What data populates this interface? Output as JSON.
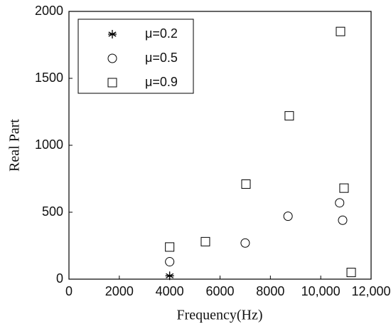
{
  "chart_data": {
    "type": "scatter",
    "x_label": "Frequency(Hz)",
    "y_label": "Real Part",
    "xlim": [
      0,
      12000
    ],
    "ylim": [
      0,
      2000
    ],
    "xticks": [
      0,
      2000,
      4000,
      6000,
      8000,
      {
        "value": 10000,
        "label": "10,000"
      },
      {
        "value": 12000,
        "label": "12,000"
      }
    ],
    "yticks": [
      0,
      500,
      1000,
      1500,
      2000
    ],
    "legend": "upper left",
    "series": [
      {
        "name": "μ=0.2",
        "color": "#000000",
        "marker": "star",
        "x": [
          4000
        ],
        "values": [
          25
        ]
      },
      {
        "name": "μ=0.5",
        "color": "#000000",
        "marker": "circle",
        "x": [
          4000,
          7000,
          8700,
          10750,
          10870
        ],
        "values": [
          130,
          270,
          470,
          570,
          440
        ]
      },
      {
        "name": "μ=0.9",
        "color": "#000000",
        "marker": "square",
        "x": [
          4000,
          5420,
          7030,
          8750,
          10785,
          10925,
          11210
        ],
        "values": [
          240,
          280,
          710,
          1220,
          1850,
          680,
          50
        ]
      }
    ]
  }
}
